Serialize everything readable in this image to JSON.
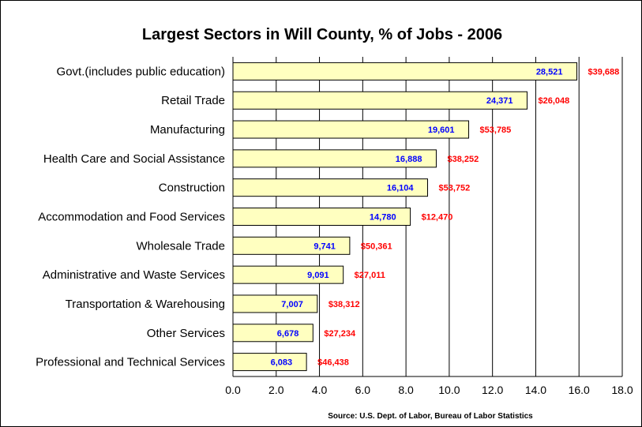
{
  "chart_data": {
    "type": "bar",
    "orientation": "horizontal",
    "title": "Largest Sectors in Will County, % of Jobs - 2006",
    "source": "Source: U.S. Dept. of Labor, Bureau of Labor Statistics",
    "xlim": [
      0,
      18
    ],
    "x_ticks": [
      "0.0",
      "2.0",
      "4.0",
      "6.0",
      "8.0",
      "10.0",
      "12.0",
      "14.0",
      "16.0",
      "18.0"
    ],
    "grid": true,
    "categories": [
      "Govt.(includes public education)",
      "Retail Trade",
      "Manufacturing",
      "Health Care and Social Assistance",
      "Construction",
      "Accommodation and Food Services",
      "Wholesale Trade",
      "Administrative and Waste Services",
      "Transportation & Warehousing",
      "Other Services",
      "Professional and Technical Services"
    ],
    "values": [
      15.9,
      13.6,
      10.9,
      9.4,
      9.0,
      8.2,
      5.4,
      5.1,
      3.9,
      3.7,
      3.4
    ],
    "jobs_labels": [
      "28,521",
      "24,371",
      "19,601",
      "16,888",
      "16,104",
      "14,780",
      "9,741",
      "9,091",
      "7,007",
      "6,678",
      "6,083"
    ],
    "wage_labels": [
      "$39,688",
      "$26,048",
      "$53,785",
      "$38,252",
      "$53,752",
      "$12,470",
      "$50,361",
      "$27,011",
      "$38,312",
      "$27,234",
      "$46,438"
    ],
    "colors": {
      "bar": "#ffffc0",
      "jobs_label": "#0000ff",
      "wage_label": "#ff0000"
    }
  }
}
